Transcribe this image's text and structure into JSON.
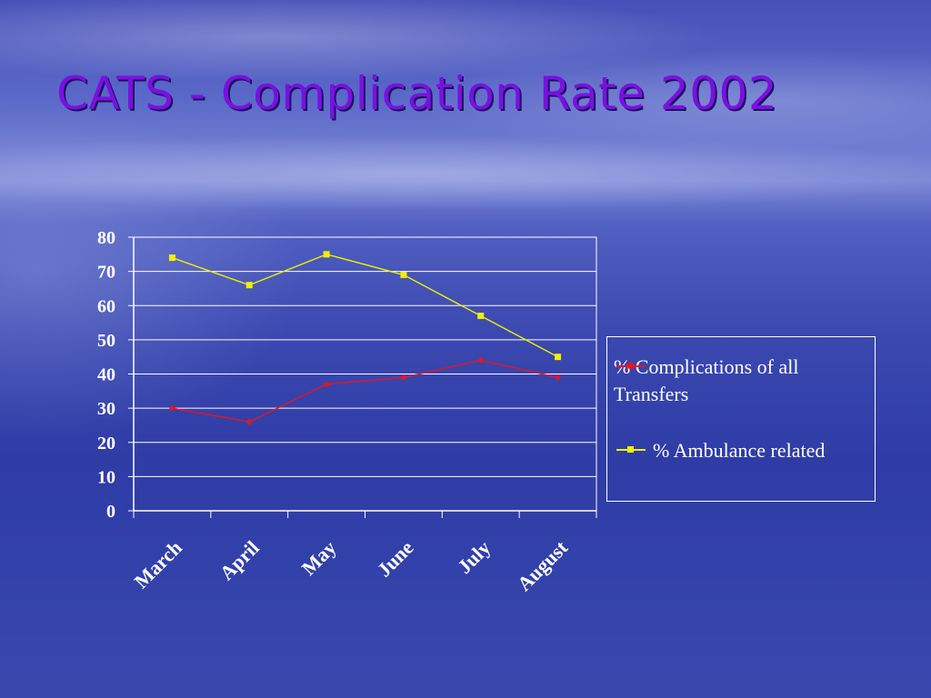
{
  "title": "CATS - Complication Rate 2002",
  "chart_data": {
    "type": "line",
    "categories": [
      "March",
      "April",
      "May",
      "June",
      "July",
      "August"
    ],
    "series": [
      {
        "name": "% Complications of all Transfers",
        "values": [
          30,
          26,
          37,
          39,
          44,
          39
        ],
        "color": "#e8141e",
        "marker": "diamond"
      },
      {
        "name": "% Ambulance related",
        "values": [
          74,
          66,
          75,
          69,
          57,
          45
        ],
        "color": "#f0f000",
        "marker": "square"
      }
    ],
    "ylim": [
      0,
      80
    ],
    "yticks": [
      0,
      10,
      20,
      30,
      40,
      50,
      60,
      70,
      80
    ],
    "grid": true,
    "legend_position": "right",
    "xlabel": "",
    "ylabel": ""
  }
}
